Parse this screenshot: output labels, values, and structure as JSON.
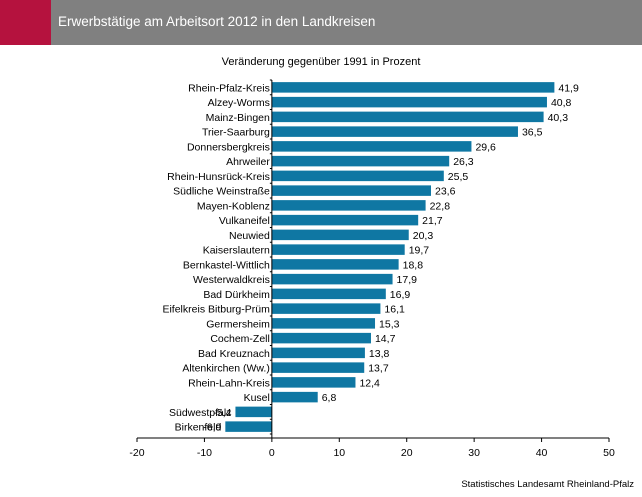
{
  "header": {
    "title": "Erwerbstätige am Arbeitsort 2012 in den Landkreisen",
    "accent_color": "#b5123e",
    "background_color": "#808080"
  },
  "source": "Statistisches Landesamt Rheinland-Pfalz",
  "chart_data": {
    "type": "bar",
    "orientation": "horizontal",
    "title": "Veränderung gegenüber 1991 in Prozent",
    "bar_color": "#0f77a3",
    "categories": [
      "Rhein-Pfalz-Kreis",
      "Alzey-Worms",
      "Mainz-Bingen",
      "Trier-Saarburg",
      "Donnersbergkreis",
      "Ahrweiler",
      "Rhein-Hunsrück-Kreis",
      "Südliche Weinstraße",
      "Mayen-Koblenz",
      "Vulkaneifel",
      "Neuwied",
      "Kaiserslautern",
      "Bernkastel-Wittlich",
      "Westerwaldkreis",
      "Bad Dürkheim",
      "Eifelkreis Bitburg-Prüm",
      "Germersheim",
      "Cochem-Zell",
      "Bad Kreuznach",
      "Altenkirchen (Ww.)",
      "Rhein-Lahn-Kreis",
      "Kusel",
      "Südwestpfalz",
      "Birkenfeld"
    ],
    "values": [
      41.9,
      40.8,
      40.3,
      36.5,
      29.6,
      26.3,
      25.5,
      23.6,
      22.8,
      21.7,
      20.3,
      19.7,
      18.8,
      17.9,
      16.9,
      16.1,
      15.3,
      14.7,
      13.8,
      13.7,
      12.4,
      6.8,
      -5.4,
      -6.9
    ],
    "value_labels": [
      "41,9",
      "40,8",
      "40,3",
      "36,5",
      "29,6",
      "26,3",
      "25,5",
      "23,6",
      "22,8",
      "21,7",
      "20,3",
      "19,7",
      "18,8",
      "17,9",
      "16,9",
      "16,1",
      "15,3",
      "14,7",
      "13,8",
      "13,7",
      "12,4",
      "6,8",
      "-5,4",
      "-6,9"
    ],
    "xlim": [
      -20,
      50
    ],
    "xticks": [
      -20,
      -10,
      0,
      10,
      20,
      30,
      40,
      50
    ],
    "xtick_labels": [
      "-20",
      "-10",
      "0",
      "10",
      "20",
      "30",
      "40",
      "50"
    ],
    "grid": false,
    "legend": "none"
  }
}
